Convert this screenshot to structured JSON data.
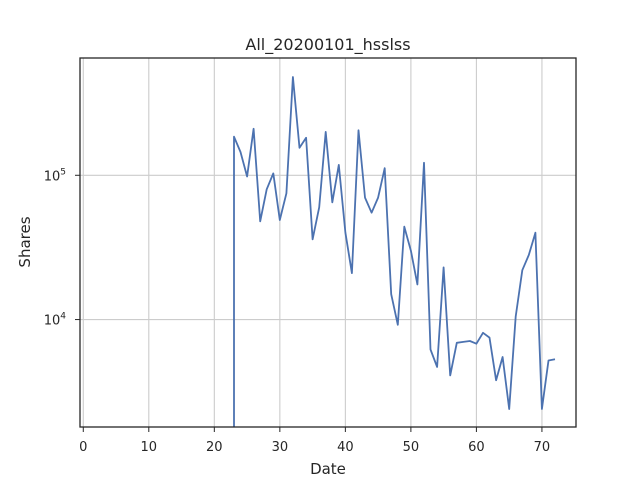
{
  "chart_data": {
    "type": "line",
    "title": "All_20200101_hsslss",
    "xlabel": "Date",
    "ylabel": "Shares",
    "xlim": [
      -0.5,
      75.2
    ],
    "ylim": [
      1800,
      650000
    ],
    "yscale": "log",
    "grid": true,
    "x_ticks": [
      0,
      10,
      20,
      30,
      40,
      50,
      60,
      70
    ],
    "x_tick_labels": [
      "0",
      "10",
      "20",
      "30",
      "40",
      "50",
      "60",
      "70"
    ],
    "y_ticks": [
      10000,
      100000
    ],
    "y_tick_labels": [
      {
        "base": "10",
        "exp": "4"
      },
      {
        "base": "10",
        "exp": "5"
      }
    ],
    "series": [
      {
        "color": "#4c72b0",
        "x": [
          23,
          23,
          24,
          25,
          26,
          27,
          28,
          29,
          30,
          31,
          32,
          33,
          34,
          35,
          36,
          37,
          38,
          39,
          40,
          41,
          42,
          43,
          44,
          45,
          46,
          47,
          48,
          49,
          50,
          51,
          52,
          53,
          54,
          55,
          56,
          57,
          58,
          59,
          60,
          61,
          62,
          63,
          64,
          65,
          66,
          67,
          68,
          69,
          70,
          71,
          72
        ],
        "y": [
          1800,
          185000,
          145000,
          98000,
          210000,
          48000,
          80000,
          103000,
          49000,
          75000,
          480000,
          155000,
          182000,
          36000,
          60000,
          200000,
          65000,
          118000,
          40000,
          21000,
          205000,
          70000,
          55000,
          70000,
          112000,
          15000,
          9200,
          44000,
          30000,
          17500,
          122000,
          6200,
          4700,
          23000,
          4100,
          6900,
          7000,
          7100,
          6800,
          8100,
          7500,
          3800,
          5500,
          2400,
          10500,
          22000,
          28000,
          40000,
          2400,
          5200,
          5300
        ]
      }
    ]
  }
}
